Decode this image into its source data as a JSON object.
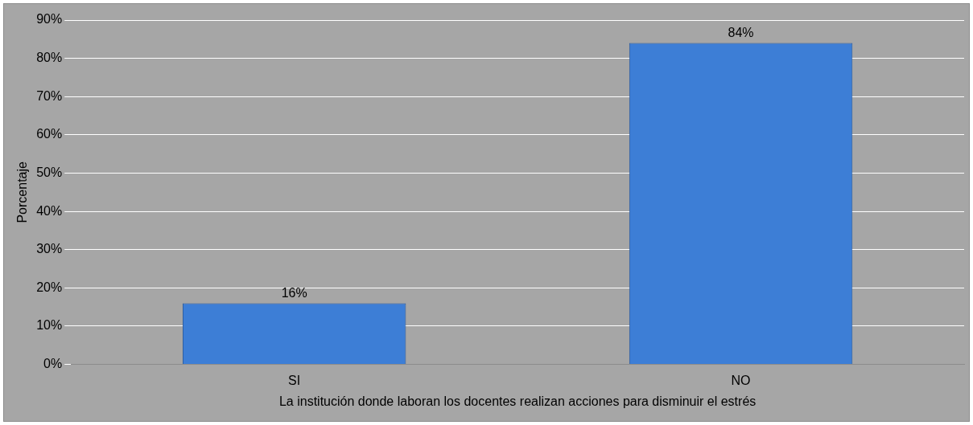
{
  "chart_data": {
    "type": "bar",
    "xlabel": "La institución donde laboran los docentes realizan acciones para disminuir el estrés",
    "ylabel": "Porcentaje",
    "categories": [
      "SI",
      "NO"
    ],
    "values": [
      16,
      84
    ],
    "value_labels": [
      "16%",
      "84%"
    ],
    "color": "#3d7ed6",
    "ylim": [
      0,
      90
    ],
    "yticks": [
      {
        "value": 0,
        "label": "0%"
      },
      {
        "value": 10,
        "label": "10%"
      },
      {
        "value": 20,
        "label": "20%"
      },
      {
        "value": 30,
        "label": "30%"
      },
      {
        "value": 40,
        "label": "40%"
      },
      {
        "value": 50,
        "label": "50%"
      },
      {
        "value": 60,
        "label": "60%"
      },
      {
        "value": 70,
        "label": "70%"
      },
      {
        "value": 80,
        "label": "80%"
      },
      {
        "value": 90,
        "label": "90%"
      }
    ],
    "grid": "y",
    "legend": false
  }
}
